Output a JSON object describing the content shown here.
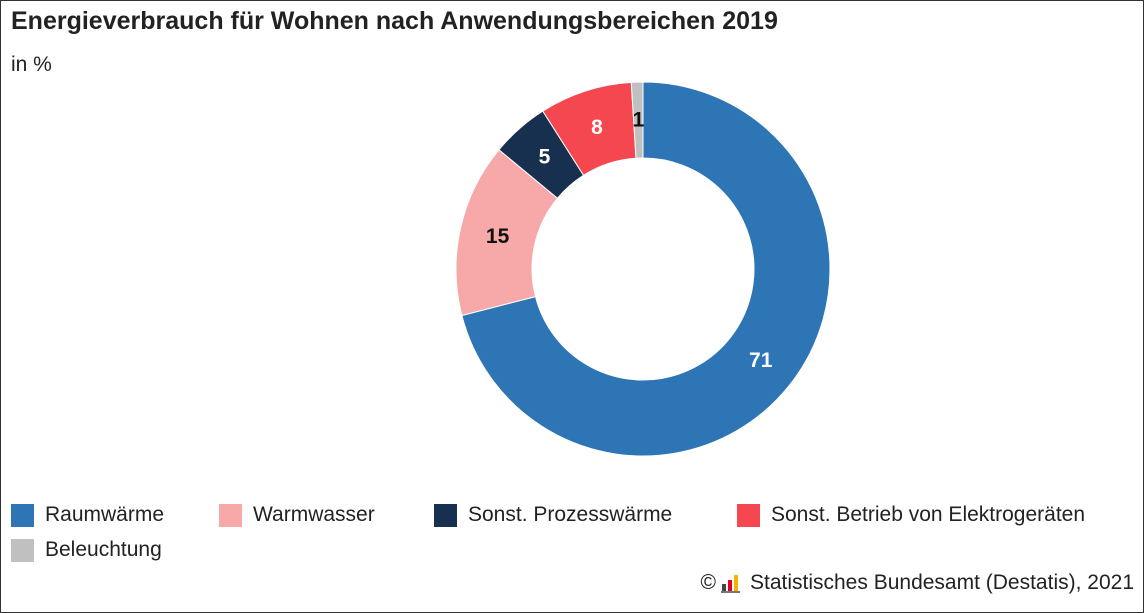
{
  "chart_data": {
    "type": "pie",
    "style": "donut",
    "title": "Energieverbrauch für Wohnen nach Anwendungsbereichen 2019",
    "subtitle": "in %",
    "slices": [
      {
        "name": "Raumwärme",
        "value": 71,
        "color": "#2e75b6",
        "label_color": "#ffffff"
      },
      {
        "name": "Warmwasser",
        "value": 15,
        "color": "#f7a8a8",
        "label_color": "#111111"
      },
      {
        "name": "Sonst. Prozesswärme",
        "value": 5,
        "color": "#17304f",
        "label_color": "#ffffff"
      },
      {
        "name": "Sonst. Betrieb von Elektrogeräten",
        "value": 8,
        "color": "#f5474f",
        "label_color": "#ffffff"
      },
      {
        "name": "Beleuchtung",
        "value": 1,
        "color": "#c0c0c0",
        "label_color": "#111111"
      }
    ],
    "legend_position": "bottom",
    "data_labels": true
  },
  "source": {
    "copyright_symbol": "©",
    "text": "Statistisches Bundesamt (Destatis), 2021",
    "logo_icon": "destatis-logo-icon"
  }
}
